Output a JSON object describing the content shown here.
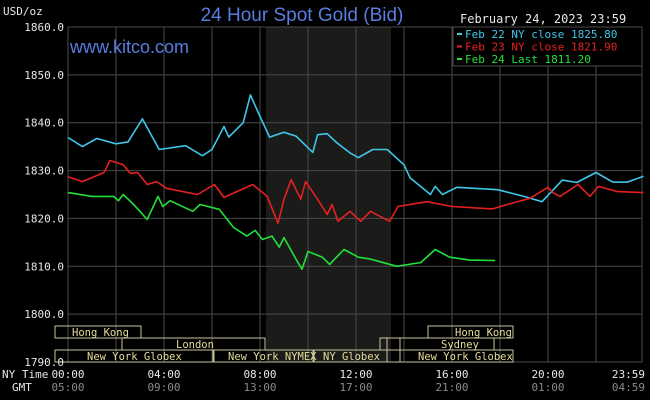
{
  "chart_data": {
    "type": "line",
    "title": "24 Hour Spot Gold (Bid)",
    "date_label": "February 24, 2023 23:59",
    "watermark": "www.kitco.com",
    "ylabel": "USD/oz",
    "ylim": [
      1790,
      1860
    ],
    "xlim_hours": [
      0,
      24
    ],
    "grid": true,
    "legend_placement": "top-right",
    "y_ticks": [
      "1860.0",
      "1850.0",
      "1840.0",
      "1830.0",
      "1820.0",
      "1810.0",
      "1800.0",
      "1790.0"
    ],
    "x_row_labels": {
      "ny": "NY Time",
      "gmt": "GMT"
    },
    "x_ticks_ny": [
      "00:00",
      "04:00",
      "08:00",
      "12:00",
      "16:00",
      "20:00",
      "23:59"
    ],
    "x_ticks_gmt": [
      "05:00",
      "09:00",
      "13:00",
      "17:00",
      "21:00",
      "01:00",
      "04:59"
    ],
    "series": [
      {
        "name": "Feb 22 NY close 1825.80",
        "color": "#3fc6e8",
        "x": [
          0,
          0.6,
          1.2,
          2,
          2.5,
          3.1,
          3.8,
          4.9,
          5.6,
          6,
          6.5,
          6.7,
          7.3,
          7.6,
          8,
          8.4,
          9,
          9.5,
          10.2,
          10.4,
          10.8,
          11.2,
          11.75,
          12.1,
          12.7,
          13.3,
          14,
          14.25,
          15.1,
          15.3,
          15.6,
          16.2,
          17.9,
          19,
          19.75,
          20.6,
          21.2,
          22,
          22.7,
          23.3,
          23.98
        ],
        "y": [
          1836.9,
          1835,
          1836.7,
          1835.6,
          1836,
          1840.8,
          1834.4,
          1835.2,
          1833.1,
          1834.4,
          1839.2,
          1837,
          1840,
          1845.8,
          1841.3,
          1837,
          1838,
          1837.2,
          1833.8,
          1837.5,
          1837.7,
          1835.8,
          1833.7,
          1832.7,
          1834.4,
          1834.4,
          1831.2,
          1828.5,
          1825,
          1826.7,
          1825,
          1826.5,
          1826,
          1824.6,
          1823.5,
          1828,
          1827.5,
          1829.6,
          1827.6,
          1827.6,
          1828.8
        ]
      },
      {
        "name": "Feb 23 NY close 1821.90",
        "color": "#e62020",
        "x": [
          0,
          0.6,
          1.5,
          1.75,
          2.3,
          2.6,
          2.9,
          3.3,
          3.7,
          4.1,
          5.4,
          6.1,
          6.5,
          7.7,
          8.3,
          8.75,
          9,
          9.3,
          9.7,
          9.9,
          10.4,
          10.8,
          11,
          11.25,
          11.75,
          12.2,
          12.6,
          13.4,
          13.75,
          14.95,
          16,
          17.7,
          18.3,
          19.25,
          20,
          20.2,
          20.5,
          21.25,
          21.75,
          22.1,
          22.9,
          23.98
        ],
        "y": [
          1828.7,
          1827.7,
          1829.6,
          1832.1,
          1831.2,
          1829.4,
          1829.6,
          1827.1,
          1827.7,
          1826.3,
          1825,
          1827.1,
          1824.4,
          1827.1,
          1824.6,
          1819,
          1824,
          1828.1,
          1824,
          1827.7,
          1824,
          1820.8,
          1822.9,
          1819.4,
          1821.5,
          1819.4,
          1821.5,
          1819.4,
          1822.5,
          1823.5,
          1822.5,
          1822,
          1822.9,
          1824.2,
          1826.5,
          1825.4,
          1824.6,
          1827.1,
          1824.6,
          1826.7,
          1825.6,
          1825.4
        ]
      },
      {
        "name": "Feb 24 Last 1811.20",
        "color": "#22e03a",
        "x": [
          0,
          1,
          1.9,
          2.1,
          2.3,
          2.7,
          3.3,
          3.75,
          3.95,
          4.25,
          5.2,
          5.5,
          6.3,
          6.9,
          7.45,
          7.8,
          8.1,
          8.5,
          8.8,
          9,
          9.5,
          9.75,
          10,
          10.6,
          10.9,
          11.5,
          12.1,
          12.6,
          13.7,
          14.7,
          15.3,
          15.9,
          16.75,
          17.8
        ],
        "y": [
          1825.4,
          1824.6,
          1824.6,
          1823.7,
          1825,
          1823.1,
          1819.8,
          1824.6,
          1822.5,
          1823.7,
          1821.5,
          1822.9,
          1821.9,
          1818.1,
          1816.3,
          1817.5,
          1815.6,
          1816.3,
          1814,
          1816,
          1811.5,
          1809.4,
          1813.1,
          1811.9,
          1810.4,
          1813.5,
          1811.9,
          1811.5,
          1810,
          1810.8,
          1813.5,
          1811.9,
          1811.3,
          1811.2
        ]
      }
    ],
    "sessions": [
      "Hong Kong",
      "London",
      "New York Globex",
      "New York NYMEX",
      "NY Globex",
      "Sydney",
      "Hong Kong",
      "New York Globex"
    ]
  },
  "colors": {
    "background": "#000000",
    "title": "#5a7de0",
    "shade": "#1b1c1a",
    "grid": "#4a4a4a",
    "session_text": "#e6dc9c",
    "session_border": "#c8c39a"
  }
}
